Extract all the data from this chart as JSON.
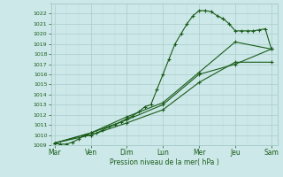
{
  "xlabel": "Pression niveau de la mer( hPa )",
  "bg_color": "#cce8e8",
  "grid_major_color": "#aacccc",
  "grid_minor_color": "#bbdddd",
  "line_color": "#1a5c1a",
  "ylim": [
    1009,
    1023
  ],
  "xlim": [
    -0.3,
    18.5
  ],
  "day_labels": [
    "Mar",
    "Ven",
    "Dim",
    "Lun",
    "Mer",
    "Jeu",
    "Sam"
  ],
  "day_positions": [
    0,
    3,
    6,
    9,
    12,
    15,
    18
  ],
  "line1_x": [
    0,
    0.5,
    1,
    1.5,
    2,
    2.5,
    3,
    3.5,
    4,
    4.5,
    5,
    5.5,
    6,
    6.5,
    7,
    7.5,
    8,
    8.5,
    9,
    9.5,
    10,
    10.5,
    11,
    11.5,
    12,
    12.5,
    13,
    13.5,
    14,
    14.5,
    15,
    15.5,
    16,
    16.5,
    17,
    17.5,
    18
  ],
  "line1_y": [
    1009.2,
    1009.1,
    1009.1,
    1009.3,
    1009.6,
    1010.0,
    1010.0,
    1010.2,
    1010.5,
    1010.8,
    1011.0,
    1011.3,
    1011.6,
    1011.9,
    1012.3,
    1012.8,
    1013.0,
    1014.5,
    1016.0,
    1017.5,
    1019.0,
    1020.0,
    1021.0,
    1021.8,
    1022.3,
    1022.3,
    1022.2,
    1021.8,
    1021.5,
    1021.0,
    1020.3,
    1020.3,
    1020.3,
    1020.3,
    1020.4,
    1020.5,
    1018.5
  ],
  "line2_x": [
    0,
    3,
    6,
    9,
    12,
    15,
    18
  ],
  "line2_y": [
    1009.2,
    1010.2,
    1011.8,
    1013.2,
    1016.2,
    1019.2,
    1018.5
  ],
  "line3_x": [
    0,
    3,
    6,
    9,
    12,
    15,
    18
  ],
  "line3_y": [
    1009.2,
    1010.0,
    1011.2,
    1012.5,
    1015.2,
    1017.2,
    1017.2
  ],
  "line4_x": [
    0,
    3,
    6,
    9,
    12,
    15,
    18
  ],
  "line4_y": [
    1009.2,
    1010.2,
    1011.5,
    1013.0,
    1016.0,
    1017.0,
    1018.5
  ],
  "yticks": [
    1009,
    1010,
    1011,
    1012,
    1013,
    1014,
    1015,
    1016,
    1017,
    1018,
    1019,
    1020,
    1021,
    1022
  ]
}
